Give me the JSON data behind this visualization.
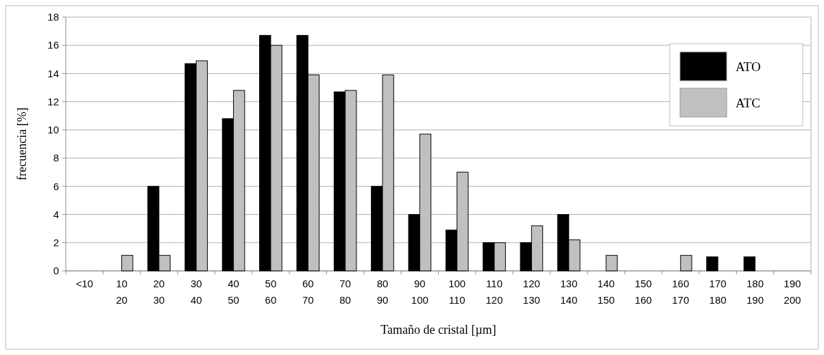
{
  "chart_data": {
    "type": "bar",
    "xlabel": "Tamaño de cristal [µm]",
    "ylabel": "frecuencia [%]",
    "categories": [
      "<10",
      "10\n20",
      "20\n30",
      "30\n40",
      "40\n50",
      "50\n60",
      "60\n70",
      "70\n80",
      "80\n90",
      "90\n100",
      "100\n110",
      "110\n120",
      "120\n130",
      "130\n140",
      "140\n150",
      "150\n160",
      "160\n170",
      "170\n180",
      "180\n190",
      "190\n200"
    ],
    "series": [
      {
        "name": "ATO",
        "color": "#000000",
        "values": [
          0,
          0,
          6,
          14.7,
          10.8,
          16.7,
          16.7,
          12.7,
          6,
          4,
          2.9,
          2,
          2,
          4,
          0,
          0,
          0,
          1,
          1,
          0
        ]
      },
      {
        "name": "ATC",
        "color": "#c0c0c0",
        "values": [
          0,
          1.1,
          1.1,
          14.9,
          12.8,
          16,
          13.9,
          12.8,
          13.9,
          9.7,
          7,
          2,
          3.2,
          2.2,
          1.1,
          0,
          1.1,
          0,
          0,
          0
        ]
      }
    ],
    "ylim": [
      0,
      18
    ],
    "yticks": [
      0,
      2,
      4,
      6,
      8,
      10,
      12,
      14,
      16,
      18
    ],
    "grid": "y",
    "legend": "top right"
  }
}
